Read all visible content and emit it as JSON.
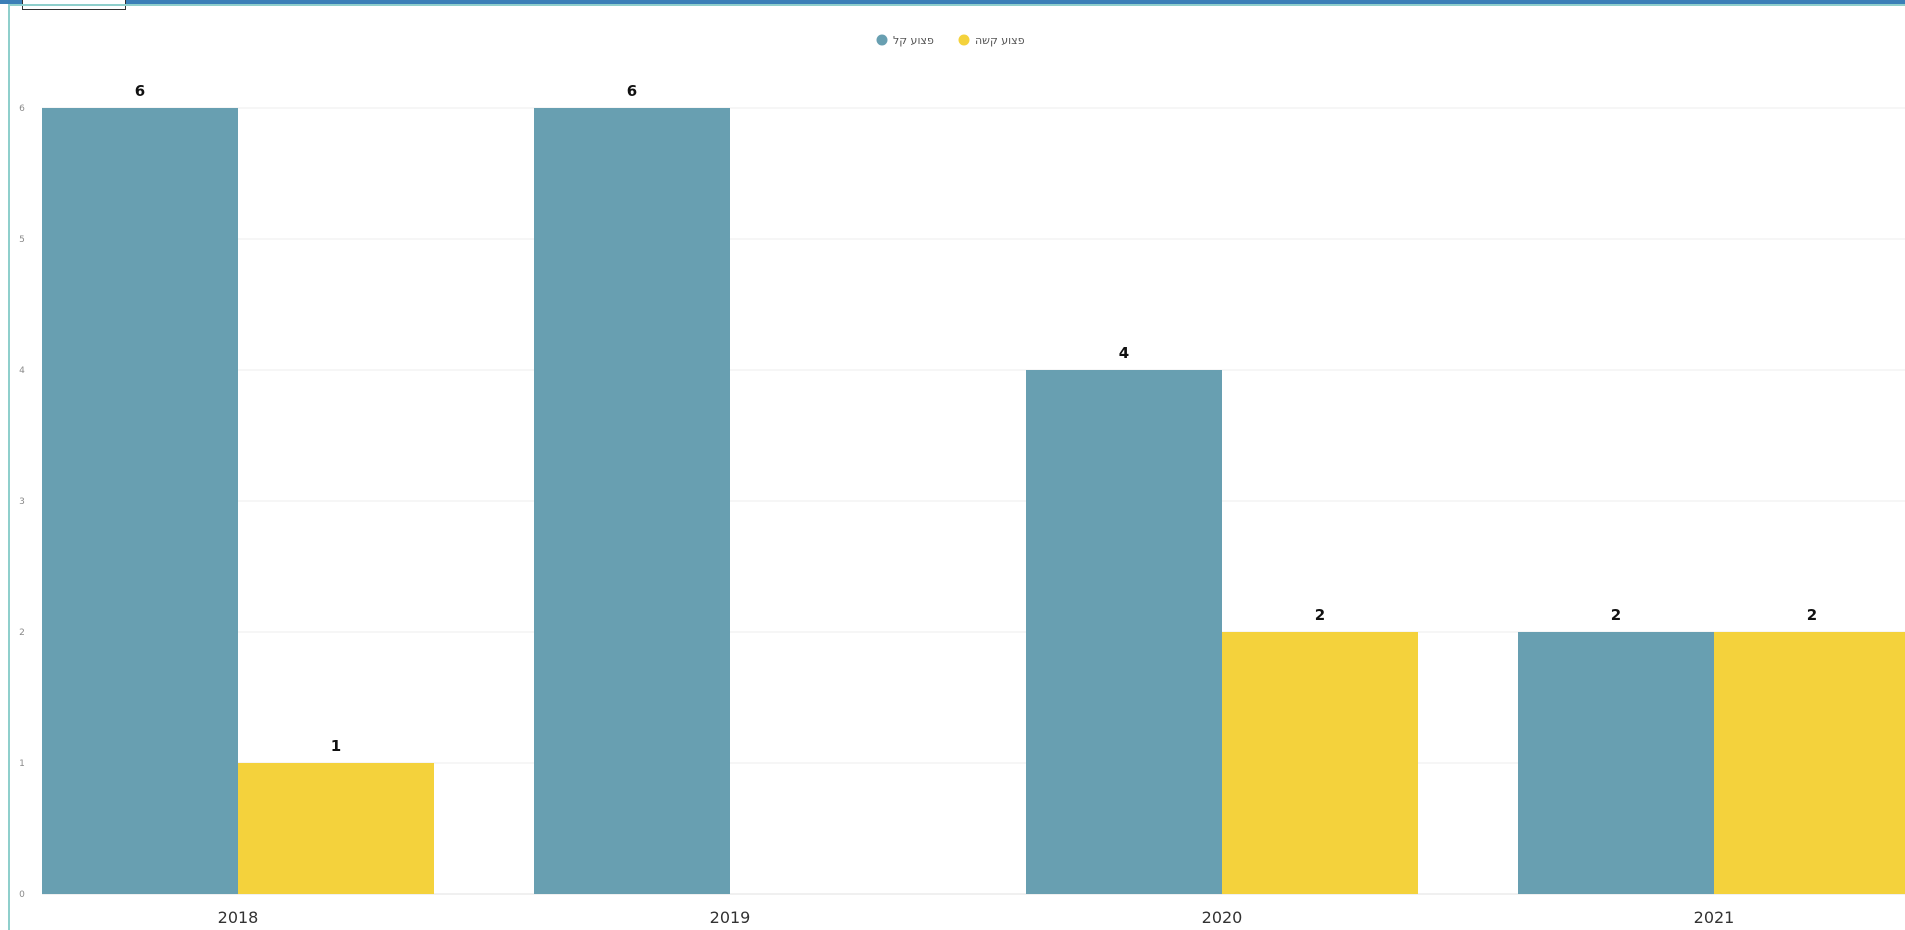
{
  "chart_data": {
    "type": "bar",
    "categories": [
      "2018",
      "2019",
      "2020",
      "2021"
    ],
    "series": [
      {
        "name": "פצוע קל",
        "values": [
          6,
          6,
          4,
          2
        ],
        "color": "#689fb1"
      },
      {
        "name": "פצוע קשה",
        "values": [
          1,
          0,
          2,
          2
        ],
        "color": "#f4d23c"
      }
    ],
    "yticks": [
      0,
      1,
      2,
      3,
      4,
      5,
      6
    ],
    "ylim": [
      0,
      6
    ],
    "grid": true,
    "legend_position": "top-center",
    "data_labels": true
  }
}
